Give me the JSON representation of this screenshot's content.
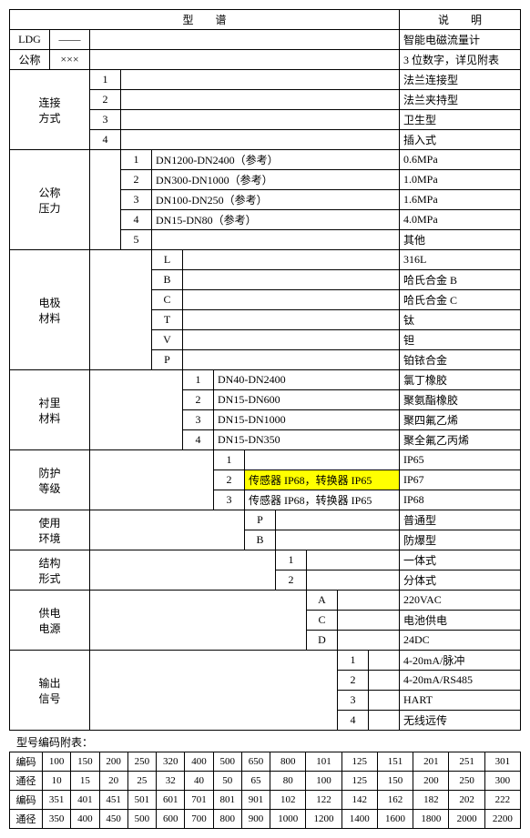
{
  "header": {
    "spectrum": "型　　谱",
    "desc": "说　　明"
  },
  "rows": [
    {
      "c0": "LDG",
      "c1": "——",
      "desc": "智能电磁流量计",
      "type": "ldg"
    },
    {
      "c0": "公称",
      "c1": "×××",
      "desc": "3 位数字，详见附表",
      "type": "gongcheng"
    },
    {
      "c0": "连接\n方式",
      "codes": [
        "1",
        "2",
        "3",
        "4"
      ],
      "descs": [
        "法兰连接型",
        "法兰夹持型",
        "卫生型",
        "插入式"
      ],
      "type": "conn",
      "rowspan": 4
    },
    {
      "c0": "公称\n压力",
      "codes": [
        "1",
        "2",
        "3",
        "4",
        "5"
      ],
      "vals": [
        "DN1200-DN2400（参考）",
        "DN300-DN1000（参考）",
        "DN100-DN250（参考）",
        "DN15-DN80（参考）",
        ""
      ],
      "descs": [
        "0.6MPa",
        "1.0MPa",
        "1.6MPa",
        "4.0MPa",
        "其他"
      ],
      "type": "press",
      "rowspan": 5
    },
    {
      "c0": "电极\n材料",
      "codes": [
        "L",
        "B",
        "C",
        "T",
        "V",
        "P"
      ],
      "descs": [
        "316L",
        "哈氏合金 B",
        "哈氏合金 C",
        "钛",
        "钽",
        "铂铱合金"
      ],
      "type": "elec",
      "rowspan": 6
    },
    {
      "c0": "衬里\n材料",
      "codes": [
        "1",
        "2",
        "3",
        "4"
      ],
      "vals": [
        "DN40-DN2400",
        "DN15-DN600",
        "DN15-DN1000",
        "DN15-DN350"
      ],
      "descs": [
        "氯丁橡胶",
        "聚氨酯橡胶",
        "聚四氟乙烯",
        "聚全氟乙丙烯"
      ],
      "type": "lining",
      "rowspan": 4
    },
    {
      "c0": "防护\n等级",
      "codes": [
        "1",
        "2",
        "3"
      ],
      "vals": [
        "",
        "传感器 IP68，转换器 IP65",
        "传感器 IP68，转换器 IP65"
      ],
      "descs": [
        "IP65",
        "IP67",
        "IP68"
      ],
      "type": "prot",
      "rowspan": 3,
      "hl": [
        1
      ]
    },
    {
      "c0": "使用\n环境",
      "codes": [
        "P",
        "B"
      ],
      "descs": [
        "普通型",
        "防爆型"
      ],
      "type": "env",
      "rowspan": 2
    },
    {
      "c0": "结构\n形式",
      "codes": [
        "1",
        "2"
      ],
      "descs": [
        "一体式",
        "分体式"
      ],
      "type": "struct",
      "rowspan": 2
    },
    {
      "c0": "供电\n电源",
      "codes": [
        "A",
        "C",
        "D"
      ],
      "descs": [
        "220VAC",
        "电池供电",
        "24DC"
      ],
      "type": "power",
      "rowspan": 3
    },
    {
      "c0": "输出\n信号",
      "codes": [
        "1",
        "2",
        "3",
        "4"
      ],
      "descs": [
        "4-20mA/脉冲",
        "4-20mA/RS485",
        "HART",
        "无线远传"
      ],
      "type": "output",
      "rowspan": 4
    }
  ],
  "appendix_label": "型号编码附表：",
  "appendix": {
    "row_labels": [
      "编码",
      "通径",
      "编码",
      "通径"
    ],
    "data": [
      [
        "100",
        "150",
        "200",
        "250",
        "320",
        "400",
        "500",
        "650",
        "800",
        "101",
        "125",
        "151",
        "201",
        "251",
        "301"
      ],
      [
        "10",
        "15",
        "20",
        "25",
        "32",
        "40",
        "50",
        "65",
        "80",
        "100",
        "125",
        "150",
        "200",
        "250",
        "300"
      ],
      [
        "351",
        "401",
        "451",
        "501",
        "601",
        "701",
        "801",
        "901",
        "102",
        "122",
        "142",
        "162",
        "182",
        "202",
        "222"
      ],
      [
        "350",
        "400",
        "450",
        "500",
        "600",
        "700",
        "800",
        "900",
        "1000",
        "1200",
        "1400",
        "1600",
        "1800",
        "2000",
        "2200"
      ]
    ]
  }
}
